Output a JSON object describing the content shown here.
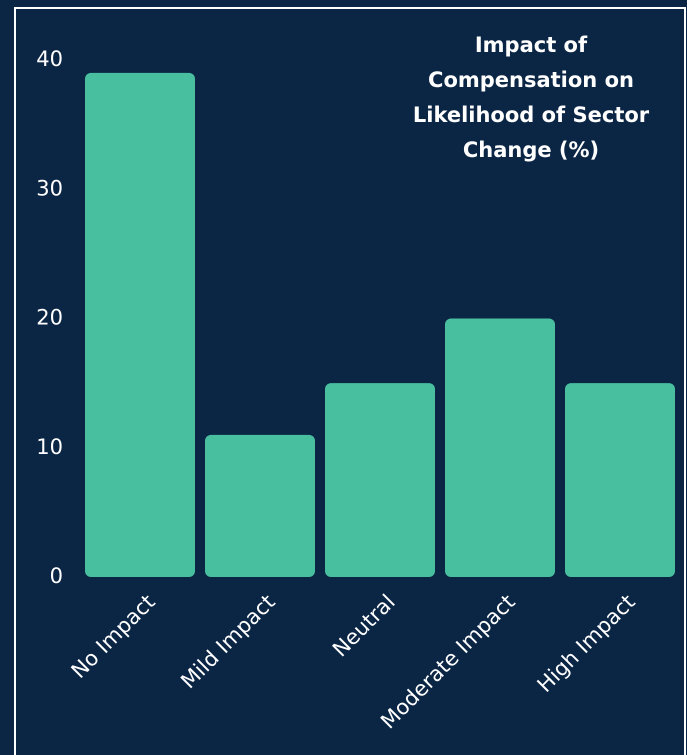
{
  "chart_data": {
    "type": "bar",
    "title": "Impact of Compensation on Likelihood of Sector Change (%)",
    "categories": [
      "No Impact",
      "Mild Impact",
      "Neutral",
      "Moderate Impact",
      "High Impact"
    ],
    "values": [
      39,
      11,
      15,
      20,
      15
    ],
    "color": "#48bf9f",
    "ylim": [
      0,
      40
    ],
    "yticks": [
      0,
      10,
      20,
      30,
      40
    ],
    "grid": false
  }
}
